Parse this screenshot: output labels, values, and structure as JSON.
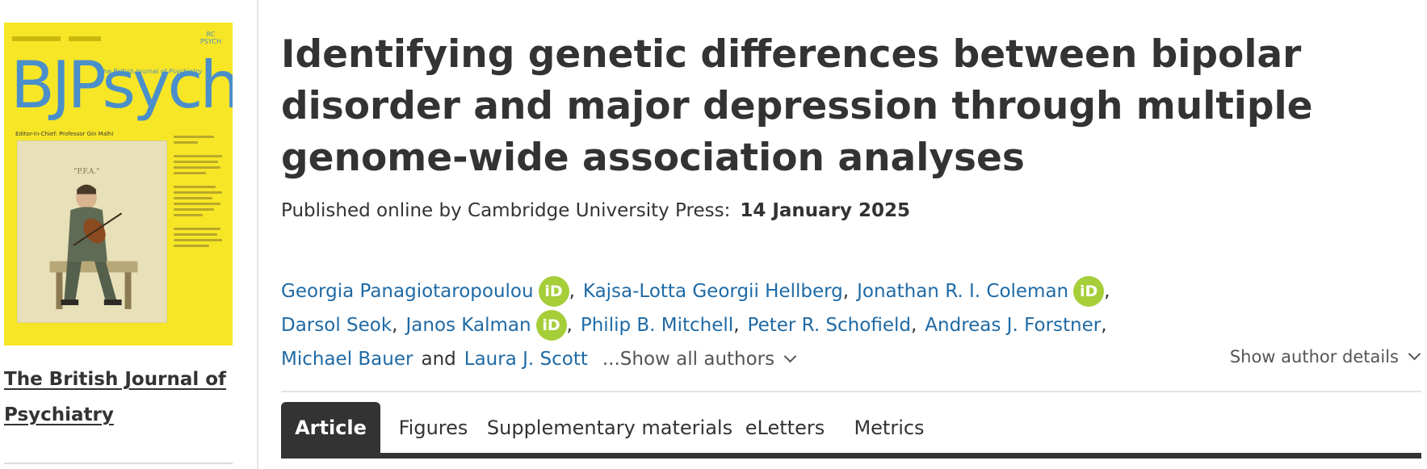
{
  "journal": {
    "name": "The British Journal of Psychiatry",
    "cover_logo": "BJPsych",
    "cover_subtitle": "The British Journal of Psychiatry",
    "cover_editor": "Editor-in-Chief: Professor Gin Malhi",
    "cover_colors": {
      "background": "#f7e626",
      "logo": "#4b8fca"
    }
  },
  "article": {
    "title": "Identifying genetic differences between bipolar disorder and major depression through multiple genome-wide association analyses",
    "published_label": "Published online by Cambridge University Press:",
    "published_date": "14 January 2025"
  },
  "authors": {
    "list": [
      {
        "name": "Georgia Panagiotaropoulou",
        "orcid": true
      },
      {
        "name": "Kajsa-Lotta Georgii Hellberg",
        "orcid": false
      },
      {
        "name": "Jonathan R. I. Coleman",
        "orcid": true
      },
      {
        "name": "Darsol Seok",
        "orcid": false
      },
      {
        "name": "Janos Kalman",
        "orcid": true
      },
      {
        "name": "Philip B. Mitchell",
        "orcid": false
      },
      {
        "name": "Peter R. Schofield",
        "orcid": false
      },
      {
        "name": "Andreas J. Forstner",
        "orcid": false
      },
      {
        "name": "Michael Bauer",
        "orcid": false
      },
      {
        "name": "Laura J. Scott",
        "orcid": false
      }
    ],
    "orcid_label": "iD",
    "and_label": "and",
    "show_all_label": "...Show all authors",
    "show_details_label": "Show author details"
  },
  "tabs": [
    {
      "label": "Article",
      "active": true
    },
    {
      "label": "Figures",
      "active": false
    },
    {
      "label": "Supplementary materials",
      "active": false
    },
    {
      "label": "eLetters",
      "active": false
    },
    {
      "label": "Metrics",
      "active": false
    }
  ],
  "colors": {
    "link": "#1f6aa5",
    "orcid": "#a6ce39",
    "text": "#333333",
    "tab_active_bg": "#333333"
  }
}
